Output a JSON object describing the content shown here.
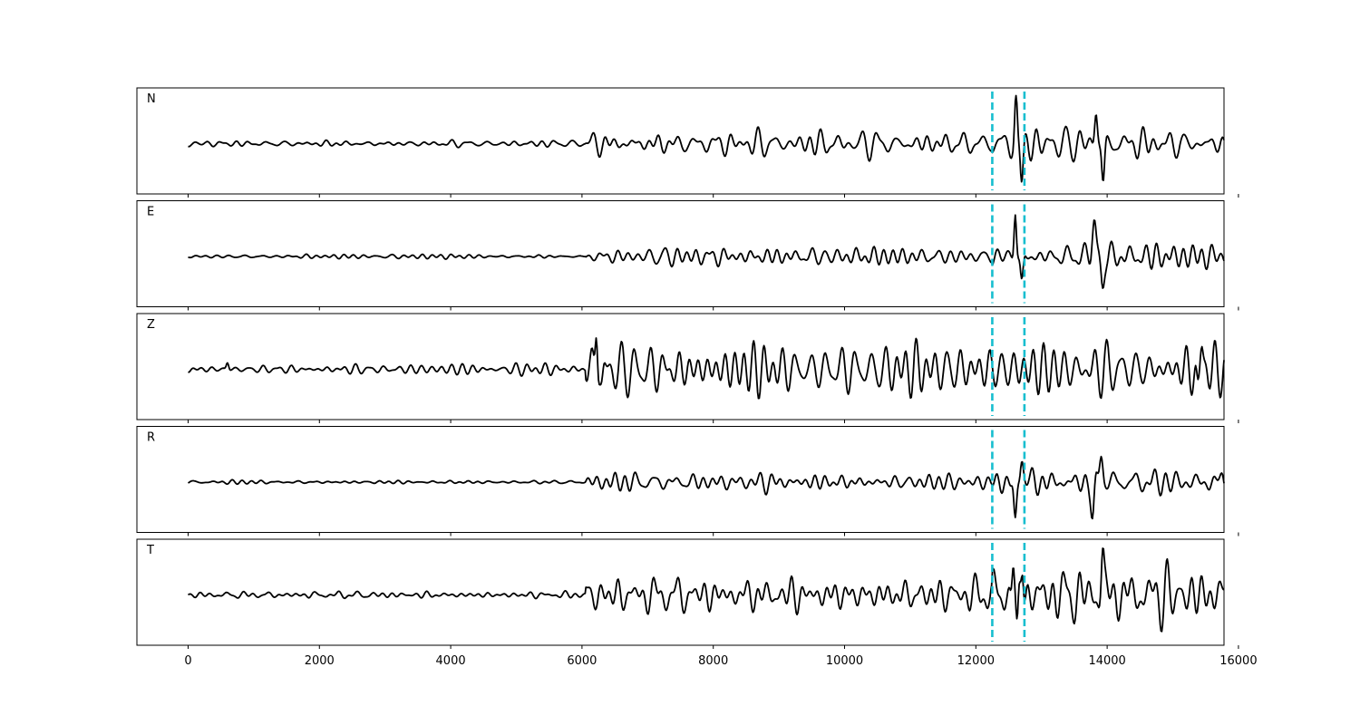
{
  "chart_data": {
    "type": "line",
    "title": "",
    "xlabel": "",
    "ylabel": "",
    "xlim": [
      -780,
      15780
    ],
    "x_ticks": [
      0,
      2000,
      4000,
      6000,
      8000,
      10000,
      12000,
      14000,
      16000
    ],
    "x_tick_labels": [
      "0",
      "2000",
      "4000",
      "6000",
      "8000",
      "10000",
      "12000",
      "14000",
      "16000"
    ],
    "grid": false,
    "y_ticks": "none",
    "sample_range": [
      0,
      15780
    ],
    "markers": {
      "style": "dashed",
      "color": "#17becf",
      "x": [
        12250,
        12740
      ]
    },
    "trace_color": "#000000",
    "panels": [
      {
        "label": "N",
        "noise": [
          0.06,
          0.25,
          0.32
        ],
        "spikes": [
          {
            "x": 12610,
            "a": 0.9,
            "w": 25
          },
          {
            "x": 12700,
            "a": -0.75,
            "w": 30
          },
          {
            "x": 13830,
            "a": 0.75,
            "w": 30
          },
          {
            "x": 13940,
            "a": -0.85,
            "w": 30
          }
        ]
      },
      {
        "label": "E",
        "noise": [
          0.04,
          0.2,
          0.3
        ],
        "spikes": [
          {
            "x": 12600,
            "a": 1.0,
            "w": 25
          },
          {
            "x": 12700,
            "a": -0.6,
            "w": 30
          },
          {
            "x": 13800,
            "a": 0.75,
            "w": 40
          },
          {
            "x": 13930,
            "a": -0.6,
            "w": 35
          }
        ]
      },
      {
        "label": "Z",
        "noise": [
          0.1,
          0.6,
          0.55
        ],
        "spikes": [
          {
            "x": 600,
            "a": 0.15,
            "w": 25
          },
          {
            "x": 6220,
            "a": 1.0,
            "w": 25
          },
          {
            "x": 6300,
            "a": -0.4,
            "w": 30
          },
          {
            "x": 15380,
            "a": -0.55,
            "w": 30
          },
          {
            "x": 15440,
            "a": 0.6,
            "w": 30
          }
        ]
      },
      {
        "label": "R",
        "noise": [
          0.04,
          0.2,
          0.3
        ],
        "spikes": [
          {
            "x": 12600,
            "a": -0.95,
            "w": 30
          },
          {
            "x": 12700,
            "a": 0.6,
            "w": 35
          },
          {
            "x": 13780,
            "a": -0.75,
            "w": 35
          },
          {
            "x": 13910,
            "a": 0.65,
            "w": 35
          }
        ]
      },
      {
        "label": "T",
        "noise": [
          0.07,
          0.35,
          0.6
        ],
        "spikes": [
          {
            "x": 12570,
            "a": 0.85,
            "w": 25
          },
          {
            "x": 12630,
            "a": -0.95,
            "w": 25
          },
          {
            "x": 12710,
            "a": 0.75,
            "w": 25
          },
          {
            "x": 13930,
            "a": 0.9,
            "w": 30
          }
        ]
      }
    ]
  }
}
